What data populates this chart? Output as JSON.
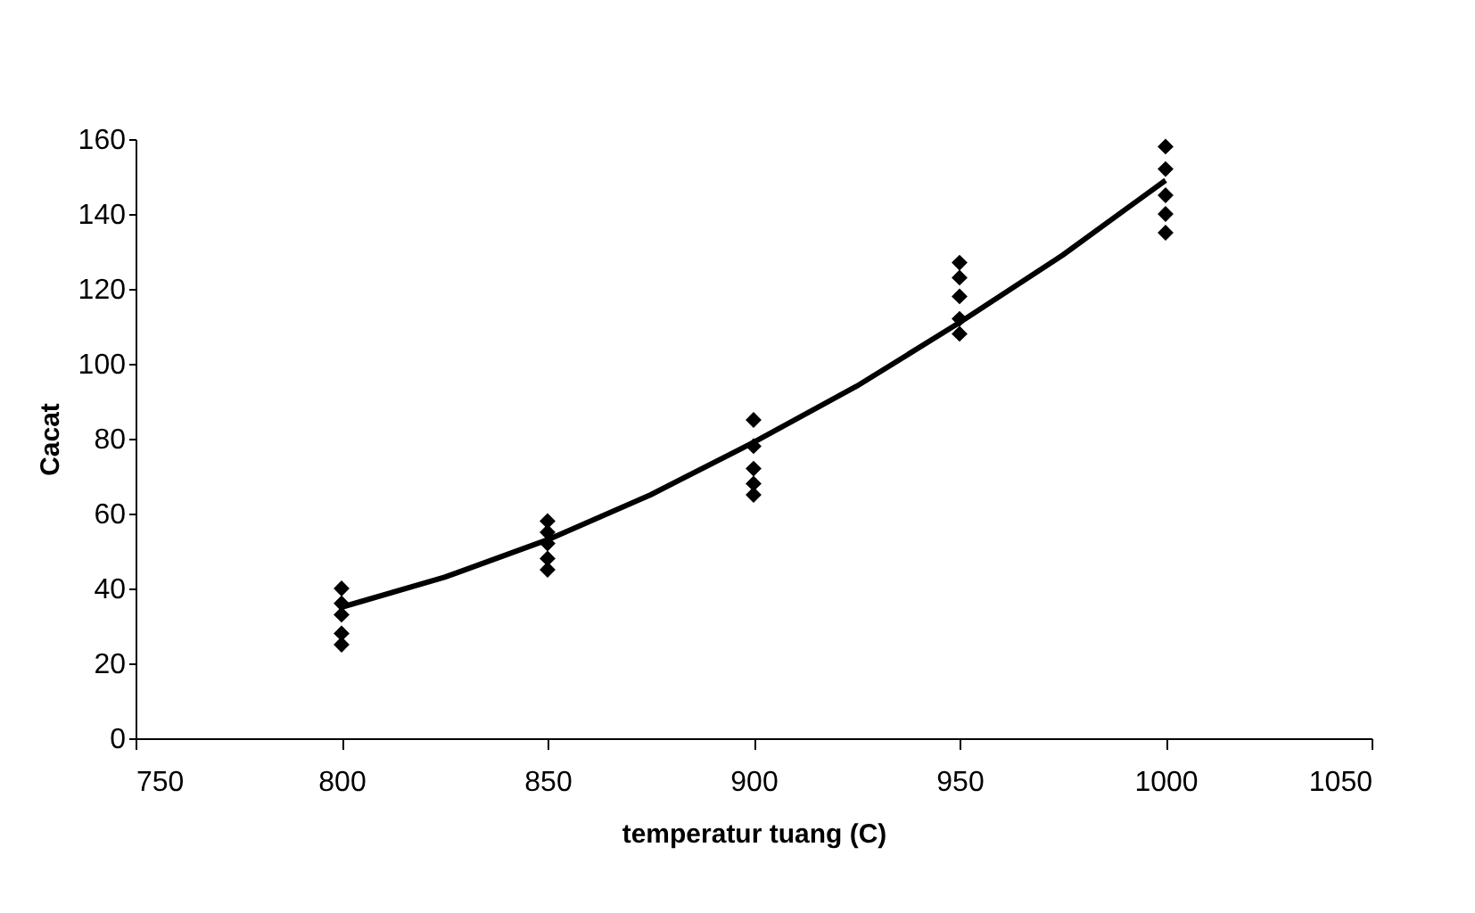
{
  "chart_data": {
    "type": "scatter",
    "xlabel": "temperatur tuang (C)",
    "ylabel": "Cacat",
    "xlim": [
      750,
      1050
    ],
    "xticks": [
      750,
      800,
      850,
      900,
      950,
      1000,
      1050
    ],
    "ylim": [
      0,
      160
    ],
    "yticks": [
      0,
      20,
      40,
      60,
      80,
      100,
      120,
      140,
      160
    ],
    "grid": false,
    "series": [
      {
        "marker": "diamond",
        "color": "#000000",
        "x": [
          800,
          800,
          800,
          800,
          800,
          850,
          850,
          850,
          850,
          850,
          900,
          900,
          900,
          900,
          900,
          950,
          950,
          950,
          950,
          950,
          1000,
          1000,
          1000,
          1000,
          1000
        ],
        "values": [
          25,
          28,
          33,
          36,
          40,
          45,
          48,
          52,
          55,
          58,
          65,
          68,
          72,
          78,
          85,
          108,
          112,
          118,
          123,
          127,
          135,
          140,
          145,
          152,
          158
        ]
      },
      {
        "type": "line",
        "marker": "none",
        "line_style": "solid",
        "color": "#000000",
        "x": [
          800,
          825,
          850,
          875,
          900,
          925,
          950,
          975,
          1000
        ],
        "values": [
          35,
          43,
          53,
          65,
          79,
          94,
          111,
          129,
          149
        ]
      }
    ]
  }
}
